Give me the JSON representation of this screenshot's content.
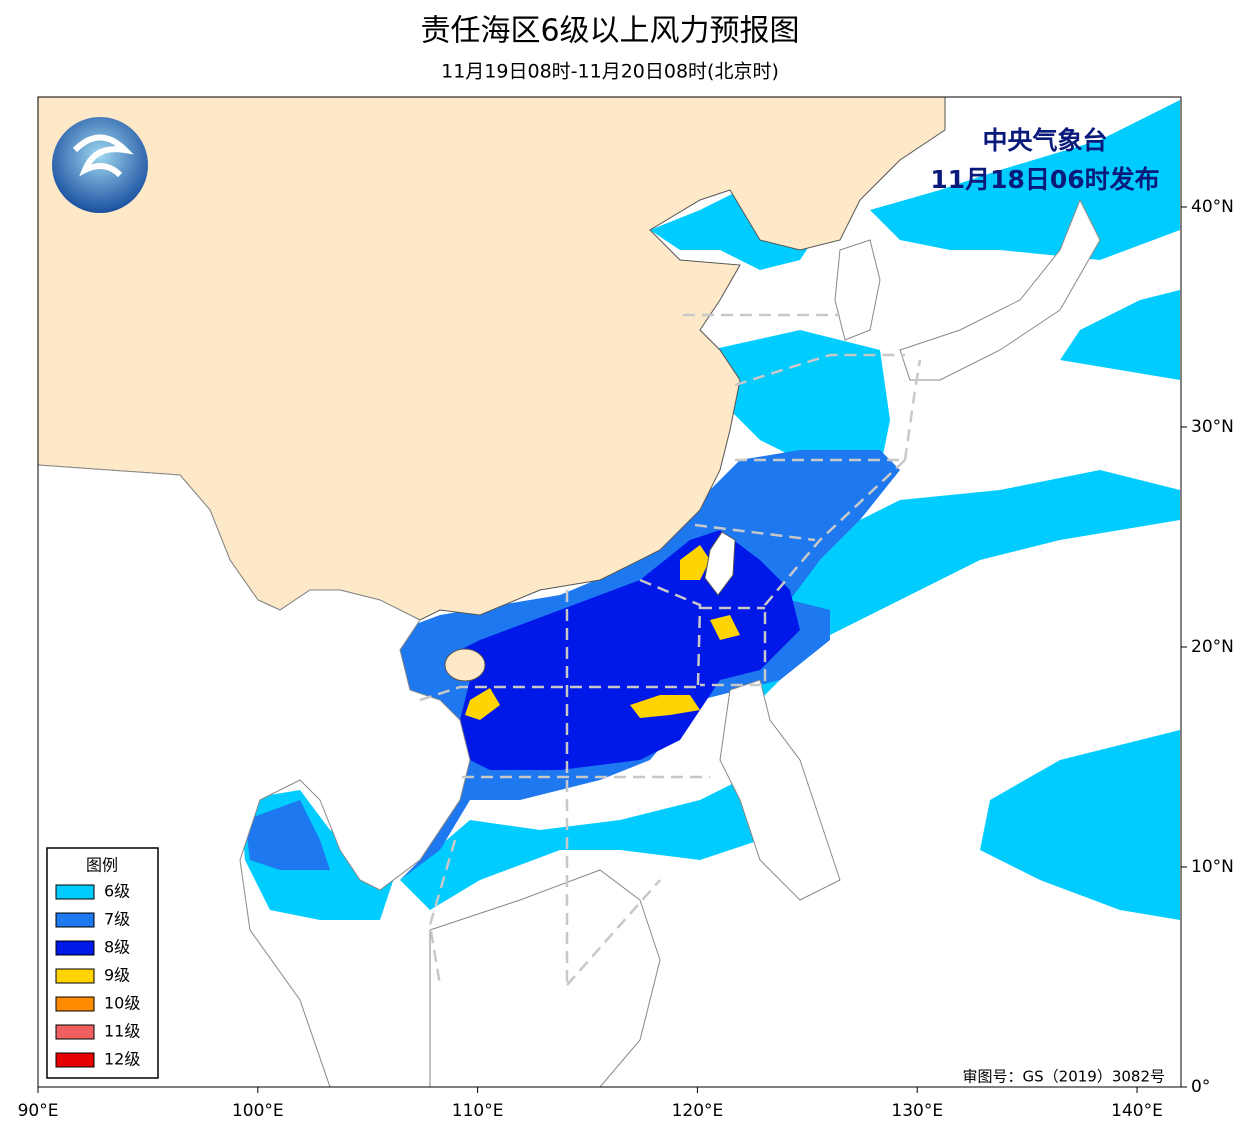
{
  "header": {
    "title": "责任海区6级以上风力预报图",
    "subtitle": "11月19日08时-11月20日08时(北京时)"
  },
  "issuer": {
    "agency": "中央气象台",
    "issued": "11月18日06时发布"
  },
  "legend": {
    "title": "图例",
    "items": [
      {
        "label": "6级",
        "color": "#00ccff"
      },
      {
        "label": "7级",
        "color": "#1e78f0"
      },
      {
        "label": "8级",
        "color": "#0018e8"
      },
      {
        "label": "9级",
        "color": "#ffd400"
      },
      {
        "label": "10级",
        "color": "#ff8c00"
      },
      {
        "label": "11级",
        "color": "#f06060"
      },
      {
        "label": "12级",
        "color": "#e60000"
      }
    ]
  },
  "map": {
    "xlim": [
      90,
      142
    ],
    "ylim": [
      0,
      45
    ],
    "xticks": [
      {
        "value": 90,
        "label": "90°E"
      },
      {
        "value": 100,
        "label": "100°E"
      },
      {
        "value": 110,
        "label": "110°E"
      },
      {
        "value": 120,
        "label": "120°E"
      },
      {
        "value": 130,
        "label": "130°E"
      },
      {
        "value": 140,
        "label": "140°E"
      }
    ],
    "yticks": [
      {
        "value": 0,
        "label": "0°"
      },
      {
        "value": 10,
        "label": "10°N"
      },
      {
        "value": 20,
        "label": "20°N"
      },
      {
        "value": 30,
        "label": "30°N"
      },
      {
        "value": 40,
        "label": "40°N"
      }
    ]
  },
  "footer": {
    "approval": "审图号：GS（2019）3082号"
  }
}
